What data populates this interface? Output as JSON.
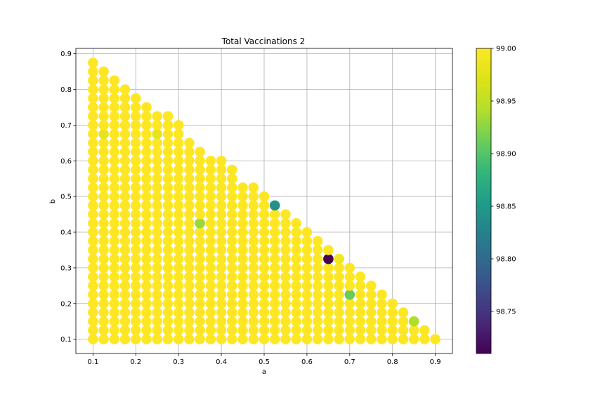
{
  "chart_data": {
    "type": "scatter",
    "title": "Total Vaccinations 2",
    "xlabel": "a",
    "ylabel": "b",
    "xlim": [
      0.06,
      0.94
    ],
    "ylim": [
      0.06,
      0.915
    ],
    "x_ticks": [
      0.1,
      0.2,
      0.3,
      0.4,
      0.5,
      0.6,
      0.7,
      0.8,
      0.9
    ],
    "x_tick_labels": [
      "0.1",
      "0.2",
      "0.3",
      "0.4",
      "0.5",
      "0.6",
      "0.7",
      "0.8",
      "0.9"
    ],
    "y_ticks": [
      0.1,
      0.2,
      0.3,
      0.4,
      0.5,
      0.6,
      0.7,
      0.8,
      0.9
    ],
    "y_tick_labels": [
      "0.1",
      "0.2",
      "0.3",
      "0.4",
      "0.5",
      "0.6",
      "0.7",
      "0.8",
      "0.9"
    ],
    "grid": true,
    "grid_step": 0.025,
    "grid_x_min": 0.1,
    "grid_y_min": 0.1,
    "default_value": 99.0,
    "top_edge_b_max": [
      {
        "a": 0.1,
        "b_max": 0.875
      },
      {
        "a": 0.125,
        "b_max": 0.85
      },
      {
        "a": 0.15,
        "b_max": 0.825
      },
      {
        "a": 0.175,
        "b_max": 0.8
      },
      {
        "a": 0.2,
        "b_max": 0.775
      },
      {
        "a": 0.225,
        "b_max": 0.75
      },
      {
        "a": 0.25,
        "b_max": 0.725
      },
      {
        "a": 0.275,
        "b_max": 0.725
      },
      {
        "a": 0.3,
        "b_max": 0.7
      },
      {
        "a": 0.325,
        "b_max": 0.65
      },
      {
        "a": 0.35,
        "b_max": 0.625
      },
      {
        "a": 0.375,
        "b_max": 0.6
      },
      {
        "a": 0.4,
        "b_max": 0.6
      },
      {
        "a": 0.425,
        "b_max": 0.575
      },
      {
        "a": 0.45,
        "b_max": 0.525
      },
      {
        "a": 0.475,
        "b_max": 0.525
      },
      {
        "a": 0.5,
        "b_max": 0.5
      },
      {
        "a": 0.525,
        "b_max": 0.475
      },
      {
        "a": 0.55,
        "b_max": 0.45
      },
      {
        "a": 0.575,
        "b_max": 0.425
      },
      {
        "a": 0.6,
        "b_max": 0.4
      },
      {
        "a": 0.625,
        "b_max": 0.375
      },
      {
        "a": 0.65,
        "b_max": 0.35
      },
      {
        "a": 0.675,
        "b_max": 0.325
      },
      {
        "a": 0.7,
        "b_max": 0.3
      },
      {
        "a": 0.725,
        "b_max": 0.275
      },
      {
        "a": 0.75,
        "b_max": 0.25
      },
      {
        "a": 0.775,
        "b_max": 0.225
      },
      {
        "a": 0.8,
        "b_max": 0.2
      },
      {
        "a": 0.825,
        "b_max": 0.175
      },
      {
        "a": 0.85,
        "b_max": 0.15
      },
      {
        "a": 0.875,
        "b_max": 0.125
      },
      {
        "a": 0.9,
        "b_max": 0.1
      }
    ],
    "special_points": [
      {
        "a": 0.125,
        "b": 0.675,
        "value": 98.98
      },
      {
        "a": 0.25,
        "b": 0.675,
        "value": 98.98
      },
      {
        "a": 0.35,
        "b": 0.425,
        "value": 98.93
      },
      {
        "a": 0.525,
        "b": 0.475,
        "value": 98.84
      },
      {
        "a": 0.65,
        "b": 0.325,
        "value": 98.71
      },
      {
        "a": 0.675,
        "b": 0.325,
        "value": 98.99
      },
      {
        "a": 0.7,
        "b": 0.225,
        "value": 98.91
      },
      {
        "a": 0.85,
        "b": 0.15,
        "value": 98.94
      }
    ],
    "colorbar": {
      "colormap": "viridis",
      "vmin": 98.71,
      "vmax": 99.0,
      "ticks": [
        98.75,
        98.8,
        98.85,
        98.9,
        98.95,
        99.0
      ],
      "tick_labels": [
        "98.75",
        "98.80",
        "98.85",
        "98.90",
        "98.95",
        "99.00"
      ]
    }
  }
}
